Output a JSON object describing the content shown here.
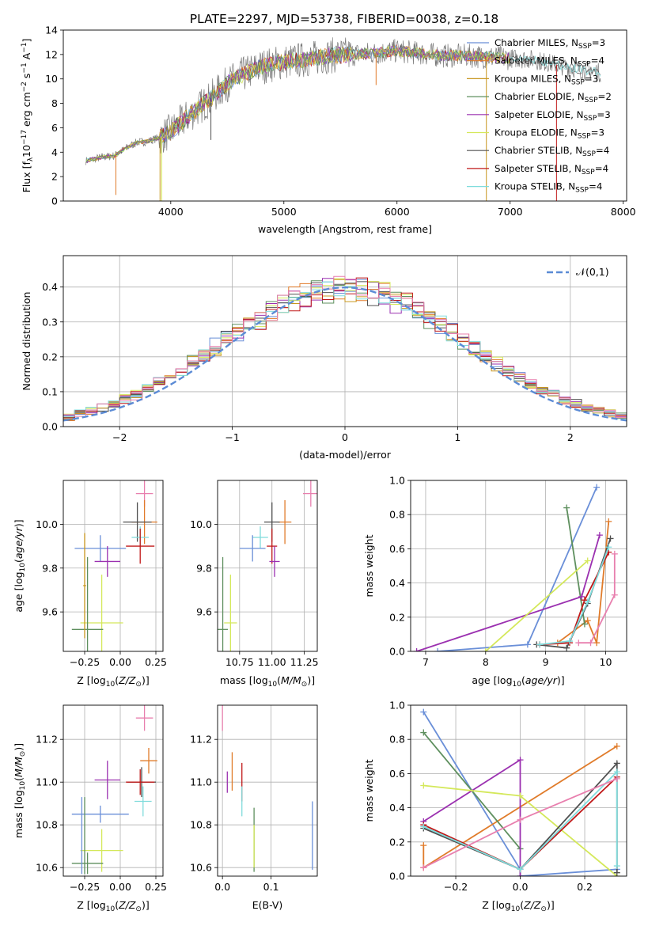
{
  "title": "PLATE=2297, MJD=53738, FIBERID=0038, z=0.18",
  "colors": {
    "Chabrier MILES": "#6a8fd8",
    "Salpeter MILES": "#e07b2a",
    "Kroupa MILES": "#c8961e",
    "Chabrier ELODIE": "#5e8f5e",
    "Salpeter ELODIE": "#9b30b0",
    "Kroupa ELODIE": "#d4e85a",
    "Chabrier STELIB": "#505050",
    "Salpeter STELIB": "#c01818",
    "Kroupa STELIB": "#7fdcdc",
    "pink": "#e87fae",
    "gaussian": "#5b8bd5"
  },
  "chart_data": [
    {
      "id": "spectrum",
      "type": "line",
      "title": "PLATE=2297, MJD=53738, FIBERID=0038, z=0.18",
      "xlabel": "wavelength [Angstrom, rest frame]",
      "ylabel": "Flux [f_λ 10^-17 erg cm^-2 s^-1 A^-1]",
      "xlim": [
        3050,
        8030
      ],
      "ylim": [
        0,
        14
      ],
      "xticks": [
        4000,
        5000,
        6000,
        7000,
        8000
      ],
      "yticks": [
        0,
        2,
        4,
        6,
        8,
        10,
        12,
        14
      ],
      "grid": false,
      "legend_position": "right",
      "legend": [
        {
          "label": "Chabrier MILES, N_SSP=3",
          "color": "Chabrier MILES"
        },
        {
          "label": "Salpeter MILES, N_SSP=4",
          "color": "Salpeter MILES"
        },
        {
          "label": "Kroupa MILES, N_SSP=3",
          "color": "Kroupa MILES"
        },
        {
          "label": "Chabrier ELODIE, N_SSP=2",
          "color": "Chabrier ELODIE"
        },
        {
          "label": "Salpeter ELODIE, N_SSP=3",
          "color": "Salpeter ELODIE"
        },
        {
          "label": "Kroupa ELODIE, N_SSP=3",
          "color": "Kroupa ELODIE"
        },
        {
          "label": "Chabrier STELIB, N_SSP=4",
          "color": "Chabrier STELIB"
        },
        {
          "label": "Salpeter STELIB, N_SSP=4",
          "color": "Salpeter STELIB"
        },
        {
          "label": "Kroupa STELIB, N_SSP=4",
          "color": "Kroupa STELIB"
        }
      ],
      "continuum": {
        "x": [
          3250,
          3400,
          3500,
          3600,
          3700,
          3800,
          3900,
          4000,
          4100,
          4200,
          4300,
          4400,
          4500,
          4600,
          4800,
          5000,
          5200,
          5400,
          5600,
          5800,
          6000,
          6200,
          6400,
          6600,
          6800,
          7000,
          7200,
          7400,
          7600,
          7800
        ],
        "y": [
          3.3,
          3.6,
          3.7,
          4.3,
          4.8,
          4.9,
          5.2,
          5.7,
          6.5,
          7.3,
          8.0,
          8.8,
          9.6,
          10.2,
          11.0,
          11.4,
          11.6,
          11.9,
          12.0,
          12.1,
          12.3,
          12.1,
          11.9,
          11.9,
          11.8,
          11.7,
          11.6,
          11.2,
          10.8,
          10.5
        ]
      },
      "spikes": {
        "x": [
          3515,
          3905,
          3920,
          4355,
          5815,
          6790,
          7410
        ],
        "y": [
          0.5,
          0.0,
          0.0,
          5.0,
          9.5,
          0.0,
          0.0
        ]
      }
    },
    {
      "id": "residuals",
      "type": "histogram",
      "xlabel": "(data-model)/error",
      "ylabel": "Normed distribution",
      "xlim": [
        -2.5,
        2.5
      ],
      "ylim": [
        0,
        0.49
      ],
      "xticks": [
        -2,
        -1,
        0,
        1,
        2
      ],
      "yticks": [
        0.0,
        0.1,
        0.2,
        0.3,
        0.4
      ],
      "grid": true,
      "legend_position": "top-right",
      "legend": [
        {
          "label": "𝒩(0,1)",
          "color": "gaussian"
        }
      ],
      "bin_width": 0.1,
      "series_colors": [
        "Chabrier MILES",
        "Salpeter MILES",
        "Kroupa MILES",
        "Chabrier ELODIE",
        "Salpeter ELODIE",
        "Kroupa ELODIE",
        "Chabrier STELIB",
        "Salpeter STELIB",
        "Kroupa STELIB",
        "pink"
      ]
    },
    {
      "id": "age_vs_Z",
      "type": "errorbar",
      "xlabel": "Z [log10(Z/Z_sun)]",
      "ylabel": "age [log10(age/yr)]",
      "xlim": [
        -0.4,
        0.3
      ],
      "ylim": [
        9.42,
        10.2
      ],
      "xticks": [
        -0.25,
        0.0,
        0.25
      ],
      "yticks": [
        9.6,
        9.8,
        10.0
      ],
      "grid": true,
      "points": [
        {
          "color": "pink",
          "x": 0.17,
          "xerr": 0.06,
          "y": 10.14,
          "yerr": 0.06
        },
        {
          "color": "Salpeter MILES",
          "x": 0.17,
          "xerr": 0.09,
          "y": 10.01,
          "yerr": 0.1
        },
        {
          "color": "Chabrier STELIB",
          "x": 0.12,
          "xerr": 0.1,
          "y": 10.01,
          "yerr": 0.09
        },
        {
          "color": "Kroupa STELIB",
          "x": 0.14,
          "xerr": 0.06,
          "y": 9.94,
          "yerr": 0.05
        },
        {
          "color": "Salpeter STELIB",
          "x": 0.14,
          "xerr": 0.1,
          "y": 9.9,
          "yerr": 0.08
        },
        {
          "color": "Chabrier MILES",
          "x": -0.14,
          "xerr": 0.18,
          "y": 9.89,
          "yerr": 0.06
        },
        {
          "color": "Salpeter ELODIE",
          "x": -0.09,
          "xerr": 0.09,
          "y": 9.83,
          "yerr": 0.07
        },
        {
          "color": "Kroupa ELODIE",
          "x": -0.13,
          "xerr": 0.15,
          "y": 9.55,
          "yerr": 0.22
        },
        {
          "color": "Chabrier ELODIE",
          "x": -0.23,
          "xerr": 0.11,
          "y": 9.52,
          "yerr": 0.33
        },
        {
          "color": "Kroupa MILES",
          "x": -0.25,
          "xerr": 0.01,
          "y": 9.72,
          "yerr": 0.24
        }
      ]
    },
    {
      "id": "age_vs_mass",
      "type": "errorbar",
      "xlabel": "mass [log10(M/M_sun)]",
      "xlim": [
        10.58,
        11.35
      ],
      "ylim": [
        9.42,
        10.2
      ],
      "xticks": [
        10.75,
        11.0,
        11.25
      ],
      "yticks": [
        9.6,
        9.8,
        10.0
      ],
      "grid": true,
      "points": [
        {
          "color": "pink",
          "x": 11.3,
          "xerr": 0.06,
          "y": 10.14,
          "yerr": 0.06
        },
        {
          "color": "Salpeter MILES",
          "x": 11.1,
          "xerr": 0.05,
          "y": 10.01,
          "yerr": 0.1
        },
        {
          "color": "Chabrier STELIB",
          "x": 11.0,
          "xerr": 0.06,
          "y": 10.01,
          "yerr": 0.09
        },
        {
          "color": "Kroupa STELIB",
          "x": 10.91,
          "xerr": 0.06,
          "y": 9.94,
          "yerr": 0.05
        },
        {
          "color": "Salpeter STELIB",
          "x": 11.0,
          "xerr": 0.04,
          "y": 9.9,
          "yerr": 0.08
        },
        {
          "color": "Chabrier MILES",
          "x": 10.85,
          "xerr": 0.1,
          "y": 9.89,
          "yerr": 0.06
        },
        {
          "color": "Salpeter ELODIE",
          "x": 11.02,
          "xerr": 0.04,
          "y": 9.83,
          "yerr": 0.07
        },
        {
          "color": "Kroupa ELODIE",
          "x": 10.68,
          "xerr": 0.05,
          "y": 9.55,
          "yerr": 0.22
        },
        {
          "color": "Chabrier ELODIE",
          "x": 10.62,
          "xerr": 0.04,
          "y": 9.52,
          "yerr": 0.33
        }
      ]
    },
    {
      "id": "weight_vs_age",
      "type": "line",
      "xlabel": "age [log10(age/yr)]",
      "ylabel": "mass weight",
      "xlim": [
        6.75,
        10.35
      ],
      "ylim": [
        0,
        1
      ],
      "xticks": [
        7,
        8,
        9,
        10
      ],
      "yticks": [
        0.0,
        0.2,
        0.4,
        0.6,
        0.8,
        1.0
      ],
      "grid": true,
      "series": [
        {
          "color": "Chabrier MILES",
          "x": [
            7.2,
            8.7,
            9.85
          ],
          "y": [
            0.0,
            0.04,
            0.96
          ]
        },
        {
          "color": "Salpeter MILES",
          "x": [
            9.2,
            9.7,
            9.85,
            10.05
          ],
          "y": [
            0.05,
            0.18,
            0.05,
            0.76
          ]
        },
        {
          "color": "Chabrier ELODIE",
          "x": [
            9.35,
            9.65
          ],
          "y": [
            0.84,
            0.16
          ]
        },
        {
          "color": "Salpeter ELODIE",
          "x": [
            6.85,
            9.6,
            9.9
          ],
          "y": [
            0.0,
            0.32,
            0.68
          ]
        },
        {
          "color": "Kroupa ELODIE",
          "x": [
            8.0,
            9.7
          ],
          "y": [
            0.0,
            0.53
          ]
        },
        {
          "color": "Chabrier STELIB",
          "x": [
            8.85,
            9.35,
            9.7,
            10.08
          ],
          "y": [
            0.04,
            0.02,
            0.28,
            0.66
          ]
        },
        {
          "color": "Salpeter STELIB",
          "x": [
            8.9,
            9.4,
            9.65,
            10.05
          ],
          "y": [
            0.04,
            0.05,
            0.3,
            0.58
          ]
        },
        {
          "color": "Kroupa STELIB",
          "x": [
            8.9,
            9.4,
            9.7,
            10.05
          ],
          "y": [
            0.04,
            0.06,
            0.29,
            0.61
          ]
        },
        {
          "color": "pink",
          "x": [
            9.55,
            9.75,
            10.15,
            10.15
          ],
          "y": [
            0.05,
            0.05,
            0.33,
            0.57
          ]
        }
      ]
    },
    {
      "id": "mass_vs_Z",
      "type": "errorbar",
      "xlabel": "Z [log10(Z/Z_sun)]",
      "ylabel": "mass [log10(M/M_sun)]",
      "xlim": [
        -0.4,
        0.3
      ],
      "ylim": [
        10.56,
        11.36
      ],
      "xticks": [
        -0.25,
        0.0,
        0.25
      ],
      "yticks": [
        10.6,
        10.8,
        11.0,
        11.2
      ],
      "grid": true,
      "points": [
        {
          "color": "pink",
          "x": 0.17,
          "xerr": 0.06,
          "y": 11.3,
          "yerr": 0.06
        },
        {
          "color": "Salpeter MILES",
          "x": 0.2,
          "xerr": 0.06,
          "y": 11.1,
          "yerr": 0.06
        },
        {
          "color": "Chabrier STELIB",
          "x": 0.15,
          "xerr": 0.1,
          "y": 11.0,
          "yerr": 0.07
        },
        {
          "color": "Salpeter STELIB",
          "x": 0.14,
          "xerr": 0.1,
          "y": 11.0,
          "yerr": 0.06
        },
        {
          "color": "Kroupa STELIB",
          "x": 0.16,
          "xerr": 0.06,
          "y": 10.91,
          "yerr": 0.07
        },
        {
          "color": "Salpeter ELODIE",
          "x": -0.09,
          "xerr": 0.09,
          "y": 11.01,
          "yerr": 0.09
        },
        {
          "color": "Chabrier MILES",
          "x": -0.14,
          "xerr": 0.2,
          "y": 10.85,
          "yerr": 0.04
        },
        {
          "color": "Kroupa ELODIE",
          "x": -0.13,
          "xerr": 0.15,
          "y": 10.68,
          "yerr": 0.1
        },
        {
          "color": "Chabrier ELODIE",
          "x": -0.23,
          "xerr": 0.11,
          "y": 10.62,
          "yerr": 0.05
        },
        {
          "color": "Chabrier ELODIE",
          "x": -0.25,
          "xerr": 0.0,
          "y": 10.75,
          "yerr": 0.18
        },
        {
          "color": "Chabrier MILES",
          "x": -0.27,
          "xerr": 0.0,
          "y": 10.75,
          "yerr": 0.18
        }
      ]
    },
    {
      "id": "mass_vs_ebv",
      "type": "errorbar",
      "xlabel": "E(B-V)",
      "xlim": [
        -0.01,
        0.195
      ],
      "ylim": [
        10.56,
        11.36
      ],
      "xticks": [
        0.0,
        0.1
      ],
      "yticks": [
        10.6,
        10.8,
        11.0,
        11.2
      ],
      "grid": true,
      "points": [
        {
          "color": "pink",
          "x": 0.0,
          "xerr": 0.0,
          "y": 11.3,
          "yerr": 0.06
        },
        {
          "color": "Salpeter MILES",
          "x": 0.02,
          "xerr": 0.0,
          "y": 11.05,
          "yerr": 0.09
        },
        {
          "color": "Salpeter ELODIE",
          "x": 0.01,
          "xerr": 0.0,
          "y": 11.0,
          "yerr": 0.05
        },
        {
          "color": "Salpeter STELIB",
          "x": 0.04,
          "xerr": 0.0,
          "y": 11.0,
          "yerr": 0.09
        },
        {
          "color": "Kroupa STELIB",
          "x": 0.04,
          "xerr": 0.0,
          "y": 10.91,
          "yerr": 0.07
        },
        {
          "color": "Chabrier ELODIE",
          "x": 0.065,
          "xerr": 0.0,
          "y": 10.73,
          "yerr": 0.15
        },
        {
          "color": "Kroupa ELODIE",
          "x": 0.065,
          "xerr": 0.0,
          "y": 10.7,
          "yerr": 0.1
        },
        {
          "color": "Chabrier MILES",
          "x": 0.185,
          "xerr": 0.0,
          "y": 10.75,
          "yerr": 0.16
        }
      ]
    },
    {
      "id": "weight_vs_Z",
      "type": "line",
      "xlabel": "Z [log10(Z/Z_sun)]",
      "ylabel": "mass weight",
      "xlim": [
        -0.34,
        0.33
      ],
      "ylim": [
        0,
        1
      ],
      "xticks": [
        -0.2,
        0.0,
        0.2
      ],
      "yticks": [
        0.0,
        0.2,
        0.4,
        0.6,
        0.8,
        1.0
      ],
      "grid": true,
      "series": [
        {
          "color": "Chabrier MILES",
          "x": [
            -0.3,
            0.0,
            0.0,
            0.3
          ],
          "y": [
            0.96,
            0.04,
            0.0,
            0.04
          ]
        },
        {
          "color": "Salpeter MILES",
          "x": [
            -0.3,
            -0.3,
            0.3
          ],
          "y": [
            0.18,
            0.05,
            0.76
          ]
        },
        {
          "color": "Chabrier ELODIE",
          "x": [
            -0.3,
            0.0
          ],
          "y": [
            0.84,
            0.16
          ]
        },
        {
          "color": "Salpeter ELODIE",
          "x": [
            -0.3,
            0.0,
            0.0
          ],
          "y": [
            0.32,
            0.68,
            0.0
          ]
        },
        {
          "color": "Kroupa ELODIE",
          "x": [
            -0.3,
            0.0,
            0.3
          ],
          "y": [
            0.53,
            0.47,
            0.0
          ]
        },
        {
          "color": "Chabrier STELIB",
          "x": [
            -0.3,
            0.0,
            0.3,
            0.3
          ],
          "y": [
            0.28,
            0.04,
            0.66,
            0.02
          ]
        },
        {
          "color": "Salpeter STELIB",
          "x": [
            -0.3,
            0.0,
            0.3
          ],
          "y": [
            0.3,
            0.04,
            0.58
          ]
        },
        {
          "color": "Kroupa STELIB",
          "x": [
            -0.3,
            0.0,
            0.3,
            0.3
          ],
          "y": [
            0.29,
            0.04,
            0.61,
            0.06
          ]
        },
        {
          "color": "pink",
          "x": [
            -0.3,
            0.0,
            0.3
          ],
          "y": [
            0.05,
            0.33,
            0.57
          ]
        }
      ]
    }
  ]
}
